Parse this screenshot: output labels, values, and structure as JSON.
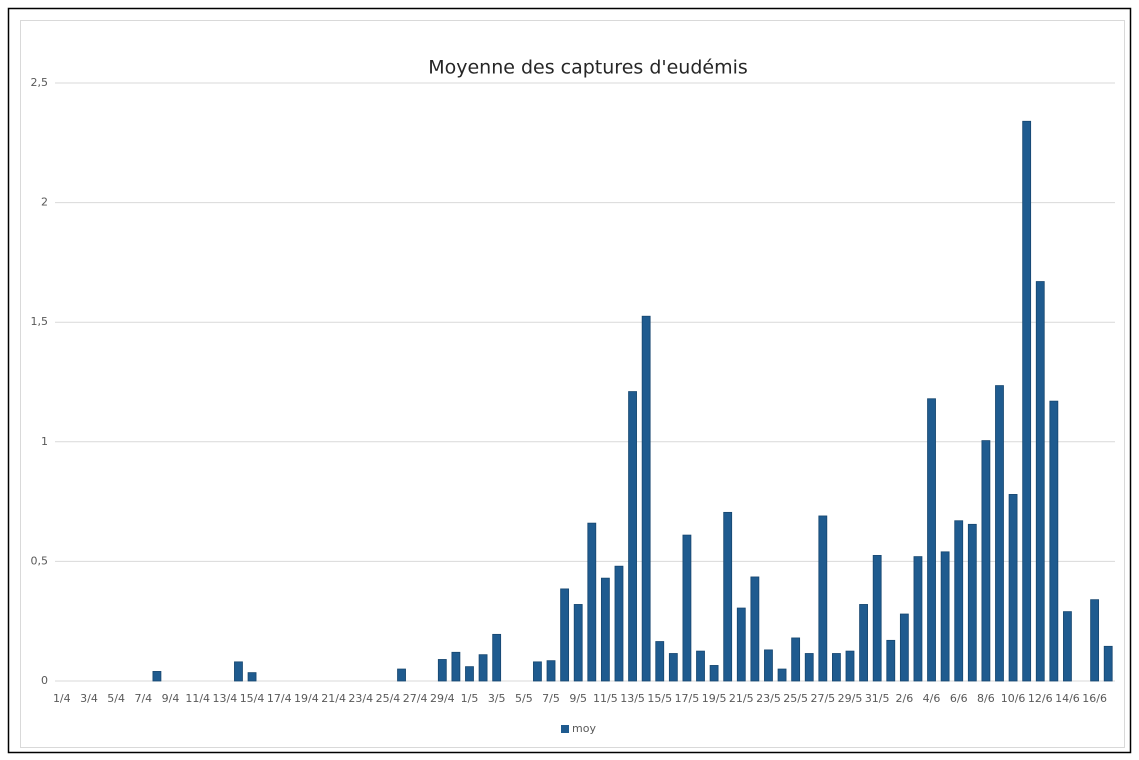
{
  "chart_data": {
    "type": "bar",
    "title": "Moyenne des captures d'eudémis",
    "categories": [
      "1/4",
      null,
      "3/4",
      null,
      "5/4",
      null,
      "7/4",
      null,
      "9/4",
      null,
      "11/4",
      null,
      "13/4",
      null,
      "15/4",
      null,
      "17/4",
      null,
      "19/4",
      null,
      "21/4",
      null,
      "23/4",
      null,
      "25/4",
      null,
      "27/4",
      null,
      "29/4",
      null,
      "1/5",
      null,
      "3/5",
      null,
      "5/5",
      null,
      "7/5",
      null,
      "9/5",
      null,
      "11/5",
      null,
      "13/5",
      null,
      "15/5",
      null,
      "17/5",
      null,
      "19/5",
      null,
      "21/5",
      null,
      "23/5",
      null,
      "25/5",
      null,
      "27/5",
      null,
      "29/5",
      null,
      "31/5",
      null,
      "2/6",
      null,
      "4/6",
      null,
      "6/6",
      null,
      "8/6",
      null,
      "10/6",
      null,
      "12/6",
      null,
      "14/6",
      null,
      "16/6",
      null
    ],
    "series": [
      {
        "name": "moy",
        "color": "#1f5b8f",
        "values": [
          0,
          0,
          0,
          0,
          0,
          0,
          0,
          0.04,
          0,
          0,
          0,
          0,
          0,
          0.08,
          0.035,
          0,
          0,
          0,
          0,
          0,
          0,
          0,
          0,
          0,
          0,
          0.05,
          0,
          0,
          0.09,
          0.12,
          0.06,
          0.11,
          0.195,
          0,
          0,
          0.08,
          0.085,
          0.385,
          0.32,
          0.66,
          0.43,
          0.48,
          1.21,
          1.525,
          0.165,
          0.115,
          0.61,
          0.125,
          0.065,
          0.705,
          0.305,
          0.435,
          0.13,
          0.05,
          0.18,
          0.115,
          0.69,
          0.115,
          0.125,
          0.32,
          0.525,
          0.17,
          0.28,
          0.52,
          1.18,
          0.54,
          0.67,
          0.655,
          1.005,
          1.235,
          0.78,
          2.34,
          1.67,
          1.17,
          0.29,
          0,
          0.34,
          0.145
        ]
      }
    ],
    "ylim": [
      0,
      2.5
    ],
    "yticks": [
      0,
      {
        "value": 0.5,
        "label": "0,5"
      },
      1,
      {
        "value": 1.5,
        "label": "1,5"
      },
      2,
      {
        "value": 2.5,
        "label": "2,5"
      }
    ],
    "grid": true,
    "legend": "bottom"
  }
}
